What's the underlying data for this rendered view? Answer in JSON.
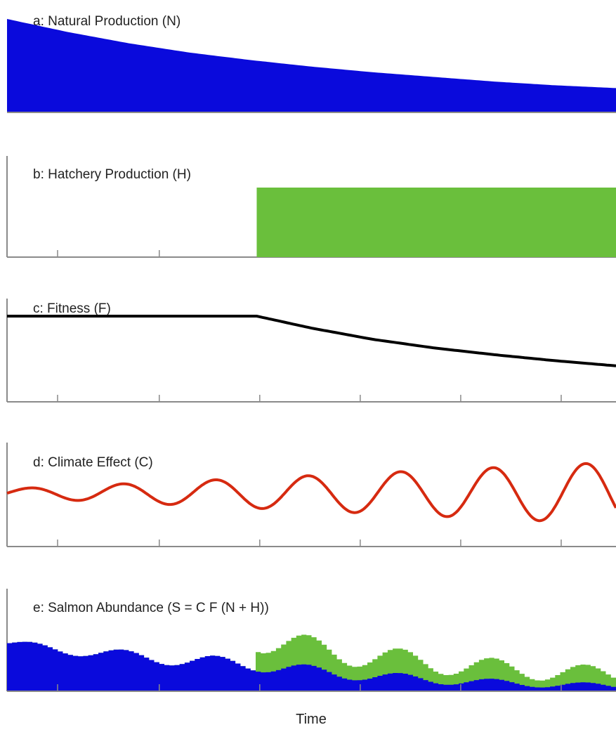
{
  "chart_data": [
    {
      "type": "area",
      "title": "a: Natural Production (N)",
      "x": [
        0,
        0.1,
        0.2,
        0.3,
        0.4,
        0.5,
        0.6,
        0.7,
        0.8,
        0.9,
        1.0
      ],
      "values": [
        1.0,
        0.86,
        0.74,
        0.64,
        0.56,
        0.49,
        0.43,
        0.38,
        0.33,
        0.29,
        0.26
      ],
      "color": "#0a0adc"
    },
    {
      "type": "area",
      "title": "b: Hatchery Production (H)",
      "x": [
        0,
        0.41,
        0.41,
        1.0
      ],
      "values": [
        0,
        0,
        1.0,
        1.0
      ],
      "color": "#6abf3c"
    },
    {
      "type": "line",
      "title": "c: Fitness (F)",
      "x": [
        0,
        0.41,
        0.5,
        0.6,
        0.7,
        0.8,
        0.9,
        1.0
      ],
      "values": [
        1.0,
        1.0,
        0.86,
        0.73,
        0.63,
        0.55,
        0.48,
        0.42
      ],
      "color": "#000000"
    },
    {
      "type": "line",
      "title": "d: Climate Effect (C)",
      "period": 0.152,
      "amplitude": [
        0.12,
        0.88
      ],
      "color": "#d62a10"
    },
    {
      "type": "area",
      "title": "e: Salmon Abundance (S = C F (N + H))",
      "xlabel": "Time",
      "series": [
        {
          "key": "N",
          "color": "#0a0adc"
        },
        {
          "key": "H",
          "color": "#6abf3c"
        }
      ]
    }
  ]
}
